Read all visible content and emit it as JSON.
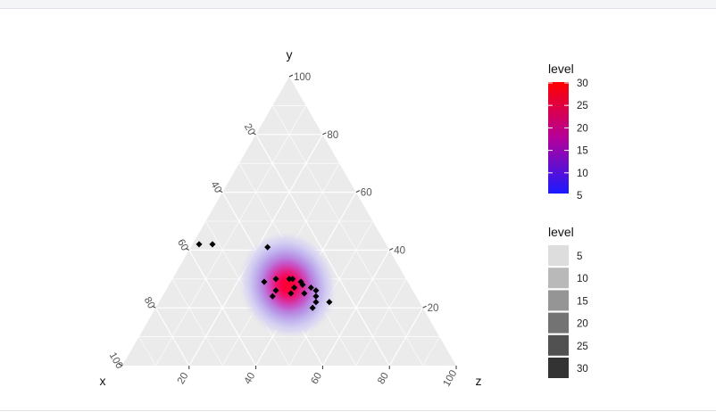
{
  "chart_data": {
    "type": "ternary-density",
    "axes": {
      "left": {
        "label": "x",
        "ticks": [
          20,
          40,
          60,
          80,
          100
        ]
      },
      "top": {
        "label": "y",
        "ticks": [
          20,
          40,
          60,
          80,
          100
        ]
      },
      "right": {
        "label": "z",
        "ticks": [
          20,
          40,
          60,
          80,
          100
        ]
      }
    },
    "grid": true,
    "points": [
      {
        "x": 56,
        "y": 42,
        "z": 2
      },
      {
        "x": 52,
        "y": 42,
        "z": 6
      },
      {
        "x": 36,
        "y": 41,
        "z": 23
      },
      {
        "x": 43,
        "y": 29,
        "z": 28
      },
      {
        "x": 39,
        "y": 30,
        "z": 31
      },
      {
        "x": 35,
        "y": 30,
        "z": 35
      },
      {
        "x": 34,
        "y": 30,
        "z": 36
      },
      {
        "x": 35,
        "y": 27,
        "z": 38
      },
      {
        "x": 32,
        "y": 29,
        "z": 39
      },
      {
        "x": 32,
        "y": 28,
        "z": 40
      },
      {
        "x": 41,
        "y": 26,
        "z": 33
      },
      {
        "x": 43,
        "y": 24,
        "z": 33
      },
      {
        "x": 37,
        "y": 25,
        "z": 38
      },
      {
        "x": 33,
        "y": 25,
        "z": 42
      },
      {
        "x": 30,
        "y": 27,
        "z": 43
      },
      {
        "x": 29,
        "y": 26,
        "z": 45
      },
      {
        "x": 30,
        "y": 24,
        "z": 46
      },
      {
        "x": 31,
        "y": 22,
        "z": 47
      },
      {
        "x": 27,
        "y": 22,
        "z": 51
      },
      {
        "x": 33,
        "y": 20,
        "z": 47
      }
    ],
    "fill_legend": {
      "title": "level",
      "labels": [
        "30",
        "25",
        "20",
        "15",
        "10",
        "5"
      ],
      "low_color": "#1a1aff",
      "high_color": "#ff0000"
    },
    "alpha_legend": {
      "title": "level",
      "labels": [
        "5",
        "10",
        "15",
        "20",
        "25",
        "30"
      ],
      "colors": [
        "#dddddd",
        "#b9b9b9",
        "#959595",
        "#737373",
        "#515151",
        "#333333"
      ]
    },
    "colors": {
      "panel": "#ebebeb",
      "gridline": "#ffffff",
      "point": "#000000"
    }
  }
}
